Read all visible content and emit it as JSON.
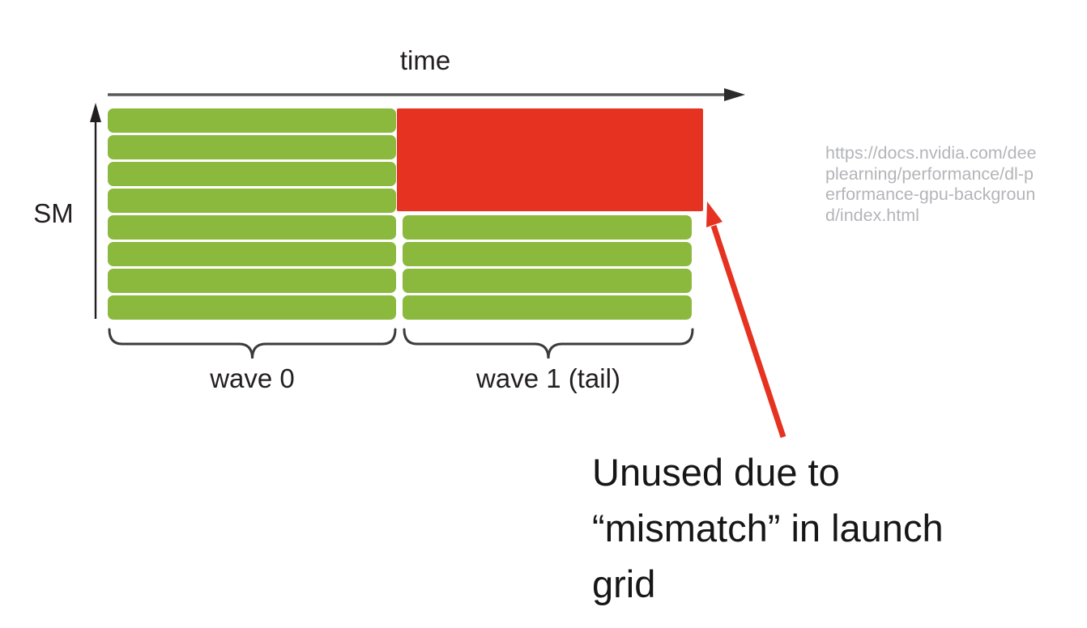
{
  "diagram": {
    "time_axis_label": "time",
    "sm_axis_label": "SM",
    "wave0_label": "wave 0",
    "wave1_label": "wave 1 (tail)",
    "sm_rows": 8,
    "wave0_occupied_rows": 8,
    "wave1_occupied_rows": 4,
    "wave1_unused_rows": 4,
    "colors": {
      "occupied_green": "#8ab93d",
      "unused_red": "#e63220",
      "axis_gray": "#58595b",
      "brace_dark": "#3b3b3b",
      "label_dark": "#231f20"
    }
  },
  "annotation": {
    "text": "Unused due to\n“mismatch” in launch\ngrid",
    "arrow_color": "#e63220"
  },
  "source_url": {
    "full": "https://docs.nvidia.com/deeplearning/performance/dl-performance-gpu-background/index.html",
    "lines": [
      "https://docs.nvidia.com/dee",
      "plearning/performance/dl-p",
      "erformance-gpu-backgroun",
      "d/index.html"
    ]
  }
}
